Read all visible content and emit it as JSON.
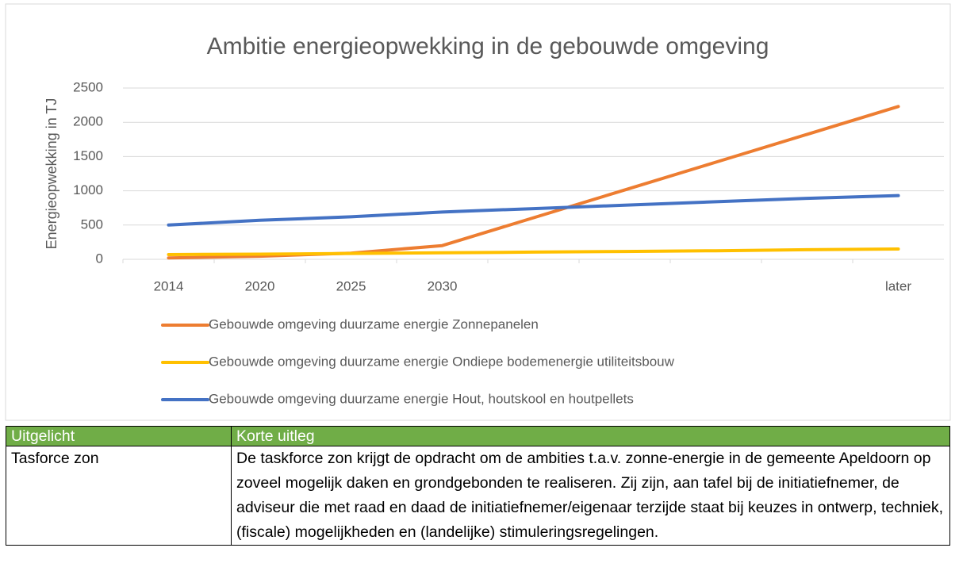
{
  "chart_data": {
    "type": "line",
    "title": "Ambitie energieopwekking in de gebouwde omgeving",
    "y_label": "Energieopwekking in TJ",
    "categories": [
      "2014",
      "2020",
      "2025",
      "2030",
      null,
      null,
      null,
      null,
      "later"
    ],
    "series": [
      {
        "name": "Gebouwde omgeving duurzame energie Zonnepanelen",
        "color": "#ed7d31",
        "values": [
          20,
          45,
          90,
          200,
          606,
          1012,
          1418,
          1824,
          2230
        ]
      },
      {
        "name": "Gebouwde omgeving duurzame energie Ondiepe bodemenergie utiliteitsbouw",
        "color": "#ffc000",
        "values": [
          70,
          75,
          85,
          95,
          105,
          115,
          125,
          140,
          150
        ]
      },
      {
        "name": "Gebouwde omgeving duurzame energie Hout, houtskool en houtpellets",
        "color": "#4472c4",
        "values": [
          500,
          570,
          620,
          690,
          740,
          790,
          840,
          890,
          930
        ]
      }
    ],
    "ylim": [
      0,
      2500
    ],
    "yticks": [
      0,
      500,
      1000,
      1500,
      2000,
      2500
    ],
    "grid": true,
    "legend": "bottom"
  },
  "table": {
    "header": [
      "Uitgelicht",
      "Korte uitleg"
    ],
    "rows": [
      [
        "Tasforce zon",
        "De taskforce zon krijgt de opdracht om de ambities t.a.v. zonne-energie in de gemeente Apeldoorn op zoveel mogelijk daken en grondgebonden te realiseren. Zij zijn, aan tafel bij de initiatiefnemer, de adviseur die met raad en daad de initiatiefnemer/eigenaar terzijde staat bij keuzes in ontwerp, techniek, (fiscale) mogelijkheden en (landelijke) stimuleringsregelingen."
      ]
    ]
  }
}
